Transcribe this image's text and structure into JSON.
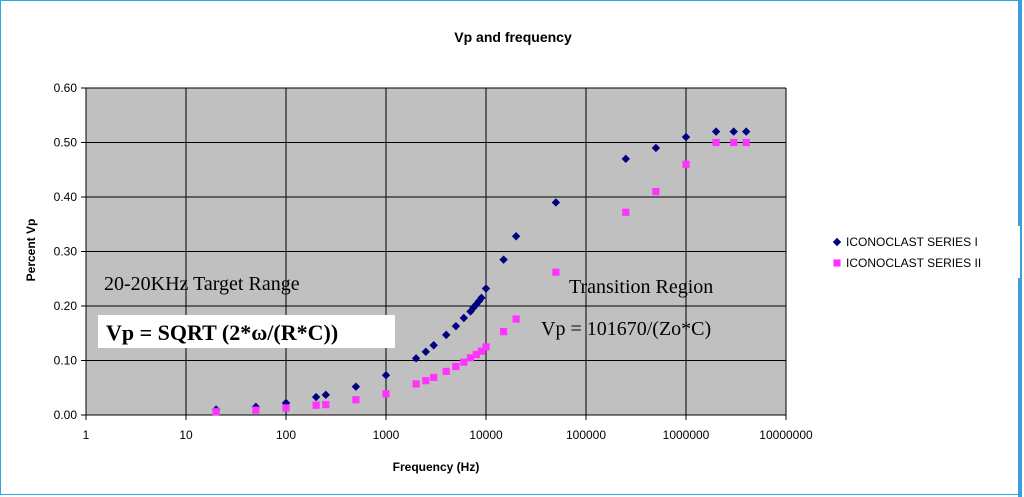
{
  "chart_data": {
    "type": "scatter",
    "title": "Vp and frequency",
    "xlabel": "Frequency (Hz)",
    "ylabel": "Percent Vp",
    "x_scale": "log",
    "xlim": [
      1,
      10000000
    ],
    "ylim": [
      0,
      0.6
    ],
    "x_ticks": [
      "1",
      "10",
      "100",
      "1000",
      "10000",
      "100000",
      "1000000",
      "10000000"
    ],
    "y_ticks": [
      "0.00",
      "0.10",
      "0.20",
      "0.30",
      "0.40",
      "0.50",
      "0.60"
    ],
    "grid": true,
    "legend_position": "right",
    "series": [
      {
        "name": "ICONOCLAST SERIES I",
        "marker": "diamond",
        "color": "#000080",
        "points": [
          [
            20,
            0.01
          ],
          [
            50,
            0.015
          ],
          [
            100,
            0.022
          ],
          [
            200,
            0.033
          ],
          [
            250,
            0.037
          ],
          [
            500,
            0.052
          ],
          [
            1000,
            0.073
          ],
          [
            2000,
            0.104
          ],
          [
            2500,
            0.116
          ],
          [
            3000,
            0.128
          ],
          [
            4000,
            0.147
          ],
          [
            5000,
            0.163
          ],
          [
            6000,
            0.178
          ],
          [
            7000,
            0.19
          ],
          [
            7500,
            0.197
          ],
          [
            8000,
            0.203
          ],
          [
            8500,
            0.209
          ],
          [
            9000,
            0.215
          ],
          [
            10000,
            0.232
          ],
          [
            15000,
            0.285
          ],
          [
            20000,
            0.328
          ],
          [
            50000,
            0.39
          ],
          [
            250000,
            0.47
          ],
          [
            500000,
            0.49
          ],
          [
            1000000,
            0.51
          ],
          [
            2000000,
            0.52
          ],
          [
            3000000,
            0.52
          ],
          [
            4000000,
            0.52
          ]
        ]
      },
      {
        "name": "ICONOCLAST SERIES II",
        "marker": "square",
        "color": "#ff33ff",
        "points": [
          [
            20,
            0.006
          ],
          [
            50,
            0.009
          ],
          [
            100,
            0.013
          ],
          [
            200,
            0.018
          ],
          [
            250,
            0.019
          ],
          [
            500,
            0.028
          ],
          [
            1000,
            0.039
          ],
          [
            2000,
            0.057
          ],
          [
            2500,
            0.063
          ],
          [
            3000,
            0.069
          ],
          [
            4000,
            0.08
          ],
          [
            5000,
            0.089
          ],
          [
            6000,
            0.097
          ],
          [
            7000,
            0.105
          ],
          [
            8000,
            0.111
          ],
          [
            9000,
            0.117
          ],
          [
            10000,
            0.125
          ],
          [
            15000,
            0.153
          ],
          [
            20000,
            0.176
          ],
          [
            50000,
            0.262
          ],
          [
            250000,
            0.372
          ],
          [
            500000,
            0.41
          ],
          [
            1000000,
            0.46
          ],
          [
            2000000,
            0.5
          ],
          [
            3000000,
            0.5
          ],
          [
            4000000,
            0.5
          ]
        ]
      }
    ],
    "annotations": [
      "20-20KHz Target Range",
      "Vp = SQRT (2*ω/(R*C))",
      "Transition Region",
      "Vp = 101670/(Zo*C)"
    ]
  },
  "colors": {
    "plot_background": "#c0c0c0",
    "gridline": "#000000",
    "frame": "#2aa8e0"
  }
}
